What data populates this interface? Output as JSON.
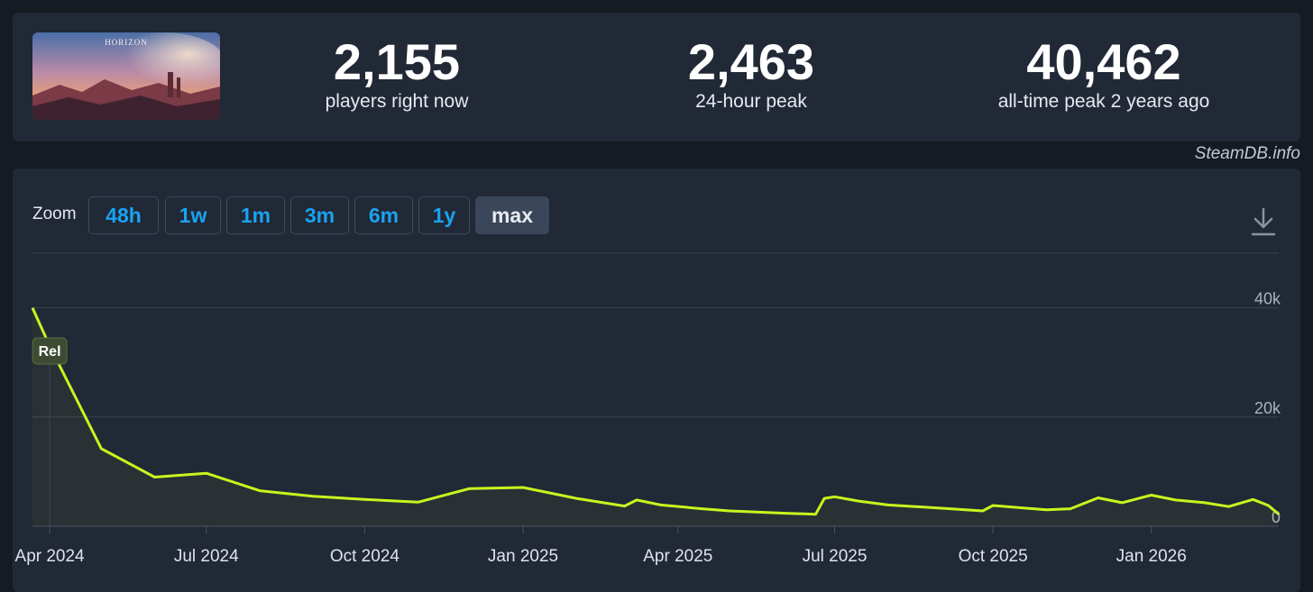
{
  "stats": [
    {
      "value": "2,155",
      "label": "players right now"
    },
    {
      "value": "2,463",
      "label": "24-hour peak"
    },
    {
      "value": "40,462",
      "label": "all-time peak 2 years ago"
    }
  ],
  "watermark": "SteamDB.info",
  "zoom": {
    "label": "Zoom",
    "options": [
      "48h",
      "1w",
      "1m",
      "3m",
      "6m",
      "1y",
      "max"
    ],
    "selected": "max"
  },
  "icons": {
    "download": "download-icon",
    "thumbnail": "game-thumbnail"
  },
  "colors": {
    "line": "#c8f51e",
    "accent": "#1aa3f0",
    "panel": "#212836",
    "background": "#161a22"
  },
  "chart_data": {
    "type": "line",
    "title": "",
    "xlabel": "",
    "ylabel": "",
    "ylim": [
      0,
      50000
    ],
    "xlim": [
      "2024-03-22",
      "2026-03-16"
    ],
    "grid": true,
    "legend": "none",
    "y_ticks": [
      {
        "value": 0,
        "label": "0"
      },
      {
        "value": 20000,
        "label": "20k"
      },
      {
        "value": 40000,
        "label": "40k"
      }
    ],
    "x_ticks": [
      {
        "date": "2024-04-01",
        "label": "Apr 2024"
      },
      {
        "date": "2024-07-01",
        "label": "Jul 2024"
      },
      {
        "date": "2024-10-01",
        "label": "Oct 2024"
      },
      {
        "date": "2025-01-01",
        "label": "Jan 2025"
      },
      {
        "date": "2025-04-01",
        "label": "Apr 2025"
      },
      {
        "date": "2025-07-01",
        "label": "Jul 2025"
      },
      {
        "date": "2025-10-01",
        "label": "Oct 2025"
      },
      {
        "date": "2026-01-01",
        "label": "Jan 2026"
      }
    ],
    "annotations": [
      {
        "date": "2024-04-01",
        "label": "Rel"
      }
    ],
    "series": [
      {
        "points": [
          [
            "2024-03-22",
            40000
          ],
          [
            "2024-04-01",
            33000
          ],
          [
            "2024-05-01",
            14200
          ],
          [
            "2024-06-01",
            9000
          ],
          [
            "2024-07-01",
            9700
          ],
          [
            "2024-08-01",
            6500
          ],
          [
            "2024-09-01",
            5500
          ],
          [
            "2024-10-01",
            4900
          ],
          [
            "2024-11-01",
            4400
          ],
          [
            "2024-12-01",
            6900
          ],
          [
            "2025-01-01",
            7100
          ],
          [
            "2025-02-01",
            5100
          ],
          [
            "2025-03-01",
            3700
          ],
          [
            "2025-03-08",
            4800
          ],
          [
            "2025-03-22",
            3900
          ],
          [
            "2025-04-15",
            3200
          ],
          [
            "2025-05-01",
            2800
          ],
          [
            "2025-06-01",
            2400
          ],
          [
            "2025-06-20",
            2200
          ],
          [
            "2025-06-25",
            5100
          ],
          [
            "2025-07-01",
            5400
          ],
          [
            "2025-07-15",
            4600
          ],
          [
            "2025-08-01",
            3900
          ],
          [
            "2025-09-01",
            3300
          ],
          [
            "2025-09-25",
            2800
          ],
          [
            "2025-10-01",
            3800
          ],
          [
            "2025-11-01",
            3000
          ],
          [
            "2025-11-15",
            3200
          ],
          [
            "2025-12-01",
            5200
          ],
          [
            "2025-12-15",
            4300
          ],
          [
            "2026-01-01",
            5700
          ],
          [
            "2026-01-15",
            4800
          ],
          [
            "2026-02-01",
            4300
          ],
          [
            "2026-02-15",
            3600
          ],
          [
            "2026-03-01",
            4900
          ],
          [
            "2026-03-10",
            3800
          ],
          [
            "2026-03-16",
            2200
          ]
        ]
      }
    ]
  }
}
